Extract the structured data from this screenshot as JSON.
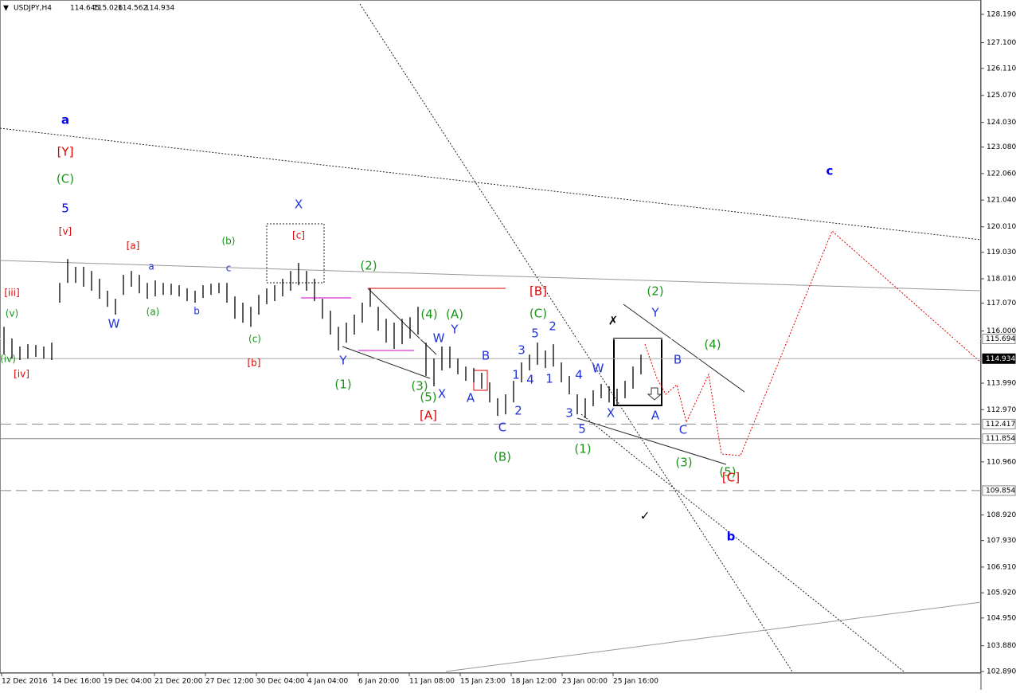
{
  "chart_data": {
    "type": "ohlc",
    "title": "USDJPY,H4",
    "quote": [
      "114.645",
      "115.026",
      "114.562",
      "114.934"
    ],
    "ylim": [
      102.89,
      128.19
    ],
    "yticks": [
      {
        "value": 128.19,
        "label": "128.190"
      },
      {
        "value": 127.1,
        "label": "127.100"
      },
      {
        "value": 126.11,
        "label": "126.110"
      },
      {
        "value": 125.07,
        "label": "125.070"
      },
      {
        "value": 124.03,
        "label": "124.030"
      },
      {
        "value": 123.08,
        "label": "123.080"
      },
      {
        "value": 122.06,
        "label": "122.060"
      },
      {
        "value": 121.04,
        "label": "121.040"
      },
      {
        "value": 120.01,
        "label": "120.010"
      },
      {
        "value": 119.03,
        "label": "119.030"
      },
      {
        "value": 118.01,
        "label": "118.010"
      },
      {
        "value": 117.07,
        "label": "117.070"
      },
      {
        "value": 116,
        "label": "116.000"
      },
      {
        "value": 113.99,
        "label": "113.990"
      },
      {
        "value": 112.97,
        "label": "112.970"
      },
      {
        "value": 110.96,
        "label": "110.960"
      },
      {
        "value": 108.92,
        "label": "108.920"
      },
      {
        "value": 107.93,
        "label": "107.930"
      },
      {
        "value": 106.91,
        "label": "106.910"
      },
      {
        "value": 105.92,
        "label": "105.920"
      },
      {
        "value": 104.95,
        "label": "104.950"
      },
      {
        "value": 103.88,
        "label": "103.880"
      },
      {
        "value": 102.89,
        "label": "102.890"
      }
    ],
    "levels": [
      {
        "value": 115.694,
        "label": "115.694"
      },
      {
        "value": 114.934,
        "label": "114.934"
      },
      {
        "value": 112.417,
        "label": "112.417"
      },
      {
        "value": 111.854,
        "label": "111.854"
      },
      {
        "value": 109.854,
        "label": "109.854"
      }
    ],
    "x": [
      "12 Dec 2016",
      "14 Dec 16:00",
      "19 Dec 04:00",
      "21 Dec 20:00",
      "27 Dec 12:00",
      "30 Dec 04:00",
      "4 Jan 04:00",
      "6 Jan 20:00",
      "11 Jan 08:00",
      "15 Jan 23:00",
      "18 Jan 12:00",
      "23 Jan 00:00",
      "25 Jan 16:00"
    ],
    "highs": [
      116.16,
      115.71,
      115.4,
      115.49,
      115.46,
      115.4,
      115.55,
      117.85,
      118.77,
      118.47,
      118.47,
      118.31,
      118.01,
      117.55,
      117.24,
      118.16,
      118.31,
      118.16,
      117.85,
      117.95,
      117.85,
      117.82,
      117.76,
      117.64,
      117.55,
      117.76,
      117.82,
      117.85,
      117.85,
      117.33,
      117.09,
      116.93,
      117.39,
      117.64,
      117.76,
      118.01,
      118.31,
      118.62,
      118.31,
      118.01,
      117.24,
      116.78,
      116.16,
      116.32,
      116.63,
      117.09,
      117.64,
      116.93,
      116.47,
      116.32,
      116.47,
      116.53,
      116.93,
      115.55,
      114.94,
      115.4,
      115.4,
      114.94,
      114.63,
      114.57,
      114.39,
      114.02,
      113.41,
      113.56,
      114.08,
      114.79,
      115.09,
      115.55,
      115.25,
      115.49,
      114.79,
      114.27,
      113.56,
      113.41,
      113.72,
      113.96,
      113.87,
      113.78,
      114.08,
      114.63,
      115.09
    ],
    "lows": [
      115.09,
      114.94,
      114.88,
      114.94,
      115.0,
      114.94,
      114.88,
      117.09,
      117.85,
      117.85,
      117.7,
      117.55,
      117.24,
      116.93,
      116.63,
      117.39,
      117.7,
      117.45,
      117.24,
      117.33,
      117.39,
      117.39,
      117.33,
      117.15,
      117.09,
      117.27,
      117.39,
      117.45,
      117.09,
      116.47,
      116.32,
      116.16,
      116.63,
      117.03,
      117.15,
      117.33,
      117.55,
      117.76,
      117.55,
      117.15,
      116.47,
      115.86,
      115.25,
      115.55,
      115.86,
      116.32,
      116.93,
      116.01,
      115.55,
      115.31,
      115.49,
      115.71,
      115.86,
      114.27,
      113.87,
      114.48,
      114.57,
      114.33,
      114.08,
      114.02,
      113.78,
      113.25,
      112.73,
      112.79,
      113.25,
      114.02,
      114.48,
      114.7,
      114.57,
      114.63,
      114.02,
      113.56,
      112.79,
      112.64,
      113.1,
      113.41,
      113.25,
      113.16,
      113.41,
      113.78,
      114.33
    ],
    "annotations": [
      {
        "text": "a",
        "color": "#0000ee"
      },
      {
        "text": "[Y]",
        "color": "#e00000"
      },
      {
        "text": "(C)",
        "color": "#1a951a"
      },
      {
        "text": "5",
        "color": "#0000ee"
      },
      {
        "text": "[v]",
        "color": "#e00000"
      },
      {
        "text": "[iii]",
        "color": "#e00000"
      },
      {
        "text": "(v)",
        "color": "#1a951a"
      },
      {
        "text": "(iv)",
        "color": "#1a951a"
      },
      {
        "text": "[iv]",
        "color": "#e00000"
      },
      {
        "text": "[a]",
        "color": "#e00000"
      },
      {
        "text": "(b)",
        "color": "#1a951a"
      },
      {
        "text": "a",
        "color": "#2233dd"
      },
      {
        "text": "c",
        "color": "#2233dd"
      },
      {
        "text": "W",
        "color": "#2233dd"
      },
      {
        "text": "(a)",
        "color": "#1a951a"
      },
      {
        "text": "b",
        "color": "#2233dd"
      },
      {
        "text": "(c)",
        "color": "#1a951a"
      },
      {
        "text": "[b]",
        "color": "#e00000"
      },
      {
        "text": "X",
        "color": "#2233dd"
      },
      {
        "text": "[c]",
        "color": "#e00000"
      },
      {
        "text": "(2)",
        "color": "#1a951a"
      },
      {
        "text": "Y",
        "color": "#2233dd"
      },
      {
        "text": "(1)",
        "color": "#1a951a"
      },
      {
        "text": "(4)",
        "color": "#1a951a"
      },
      {
        "text": "(A)",
        "color": "#1a951a"
      },
      {
        "text": "W",
        "color": "#2233dd"
      },
      {
        "text": "Y",
        "color": "#2233dd"
      },
      {
        "text": "(3)",
        "color": "#1a951a"
      },
      {
        "text": "(5)",
        "color": "#1a951a"
      },
      {
        "text": "X",
        "color": "#2233dd"
      },
      {
        "text": "[A]",
        "color": "#e00000"
      },
      {
        "text": "B",
        "color": "#2233dd"
      },
      {
        "text": "A",
        "color": "#2233dd"
      },
      {
        "text": "C",
        "color": "#2233dd"
      },
      {
        "text": "(B)",
        "color": "#1a951a"
      },
      {
        "text": "2",
        "color": "#2233dd"
      },
      {
        "text": "1",
        "color": "#2233dd"
      },
      {
        "text": "3",
        "color": "#2233dd"
      },
      {
        "text": "4",
        "color": "#2233dd"
      },
      {
        "text": "(C)",
        "color": "#1a951a"
      },
      {
        "text": "[B]",
        "color": "#e00000"
      },
      {
        "text": "5",
        "color": "#2233dd"
      },
      {
        "text": "2",
        "color": "#2233dd"
      },
      {
        "text": "1",
        "color": "#2233dd"
      },
      {
        "text": "4",
        "color": "#2233dd"
      },
      {
        "text": "W",
        "color": "#2233dd"
      },
      {
        "text": "3",
        "color": "#2233dd"
      },
      {
        "text": "5",
        "color": "#2233dd"
      },
      {
        "text": "(1)",
        "color": "#1a951a"
      },
      {
        "text": "X",
        "color": "#2233dd"
      },
      {
        "text": "(2)",
        "color": "#1a951a"
      },
      {
        "text": "Y",
        "color": "#2233dd"
      },
      {
        "text": "B",
        "color": "#2233dd"
      },
      {
        "text": "A",
        "color": "#2233dd"
      },
      {
        "text": "C",
        "color": "#2233dd"
      },
      {
        "text": "(4)",
        "color": "#1a951a"
      },
      {
        "text": "(3)",
        "color": "#1a951a"
      },
      {
        "text": "(5)",
        "color": "#1a951a"
      },
      {
        "text": "[C]",
        "color": "#e00000"
      },
      {
        "text": "b",
        "color": "#0000ee"
      },
      {
        "text": "c",
        "color": "#0000ee"
      },
      {
        "text": "✓",
        "color": "#000000"
      },
      {
        "text": "✗",
        "color": "#000000"
      }
    ]
  }
}
